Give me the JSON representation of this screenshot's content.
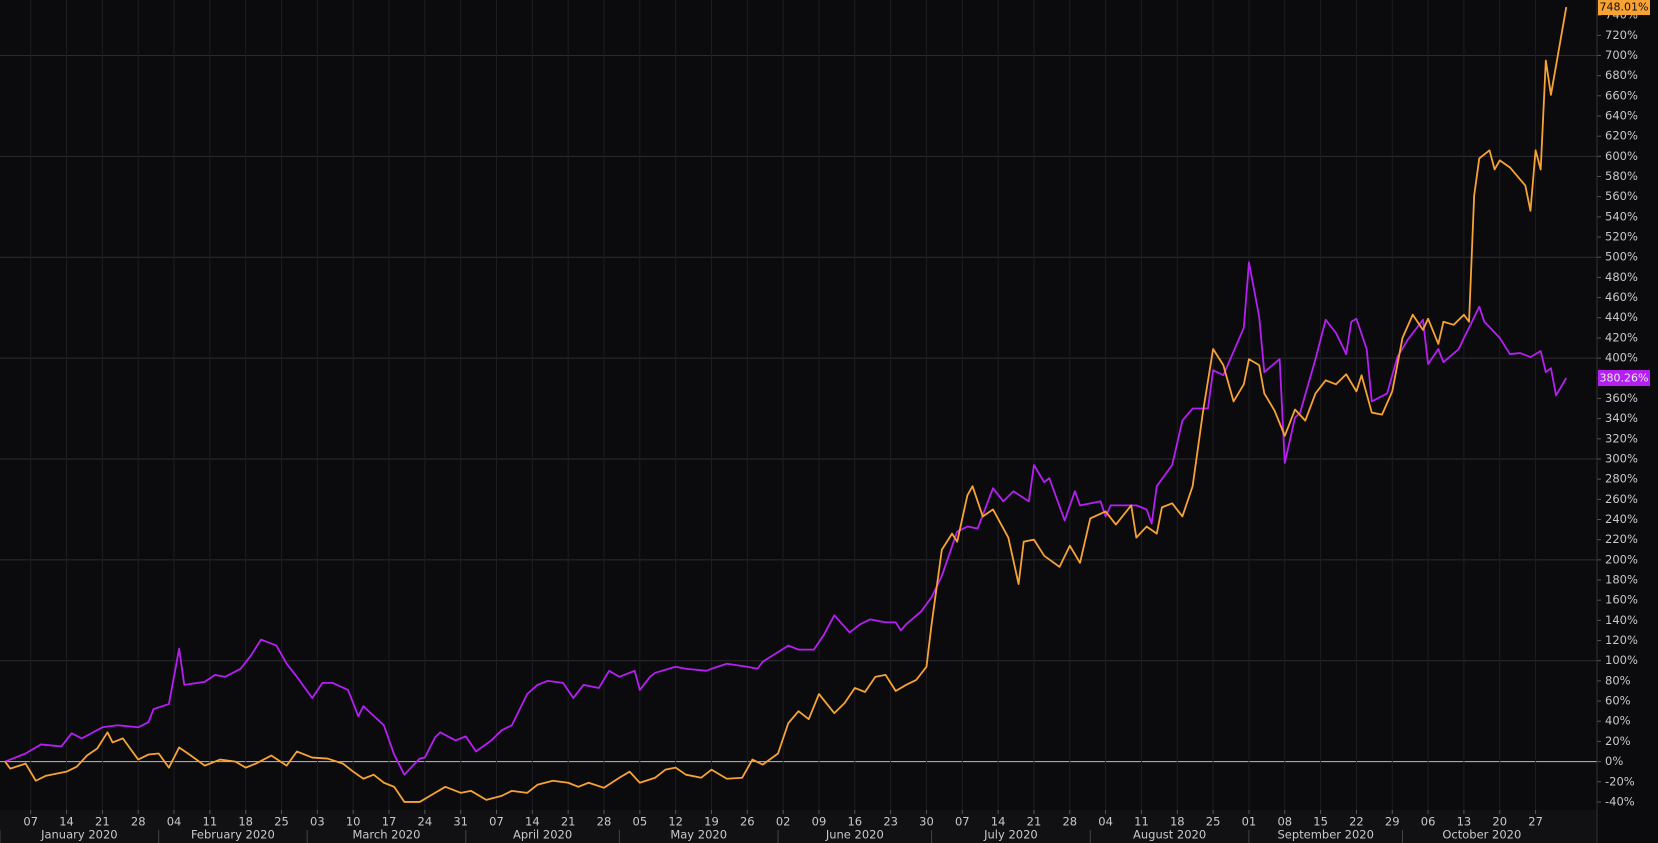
{
  "chart_data": {
    "type": "line",
    "xlim": [
      "2020-01-01",
      "2020-11-08"
    ],
    "ylim": [
      -48,
      755
    ],
    "grid": true,
    "xticks": [
      {
        "value": "2020-01-07",
        "label": "07"
      },
      {
        "value": "2020-01-14",
        "label": "14"
      },
      {
        "value": "2020-01-21",
        "label": "21"
      },
      {
        "value": "2020-01-28",
        "label": "28"
      },
      {
        "value": "2020-02-04",
        "label": "04"
      },
      {
        "value": "2020-02-11",
        "label": "11"
      },
      {
        "value": "2020-02-18",
        "label": "18"
      },
      {
        "value": "2020-02-25",
        "label": "25"
      },
      {
        "value": "2020-03-03",
        "label": "03"
      },
      {
        "value": "2020-03-10",
        "label": "10"
      },
      {
        "value": "2020-03-17",
        "label": "17"
      },
      {
        "value": "2020-03-24",
        "label": "24"
      },
      {
        "value": "2020-03-31",
        "label": "31"
      },
      {
        "value": "2020-04-07",
        "label": "07"
      },
      {
        "value": "2020-04-14",
        "label": "14"
      },
      {
        "value": "2020-04-21",
        "label": "21"
      },
      {
        "value": "2020-04-28",
        "label": "28"
      },
      {
        "value": "2020-05-05",
        "label": "05"
      },
      {
        "value": "2020-05-12",
        "label": "12"
      },
      {
        "value": "2020-05-19",
        "label": "19"
      },
      {
        "value": "2020-05-26",
        "label": "26"
      },
      {
        "value": "2020-06-02",
        "label": "02"
      },
      {
        "value": "2020-06-09",
        "label": "09"
      },
      {
        "value": "2020-06-16",
        "label": "16"
      },
      {
        "value": "2020-06-23",
        "label": "23"
      },
      {
        "value": "2020-06-30",
        "label": "30"
      },
      {
        "value": "2020-07-07",
        "label": "07"
      },
      {
        "value": "2020-07-14",
        "label": "14"
      },
      {
        "value": "2020-07-21",
        "label": "21"
      },
      {
        "value": "2020-07-28",
        "label": "28"
      },
      {
        "value": "2020-08-04",
        "label": "04"
      },
      {
        "value": "2020-08-11",
        "label": "11"
      },
      {
        "value": "2020-08-18",
        "label": "18"
      },
      {
        "value": "2020-08-25",
        "label": "25"
      },
      {
        "value": "2020-09-01",
        "label": "01"
      },
      {
        "value": "2020-09-08",
        "label": "08"
      },
      {
        "value": "2020-09-15",
        "label": "15"
      },
      {
        "value": "2020-09-22",
        "label": "22"
      },
      {
        "value": "2020-09-29",
        "label": "29"
      },
      {
        "value": "2020-10-06",
        "label": "06"
      },
      {
        "value": "2020-10-13",
        "label": "13"
      },
      {
        "value": "2020-10-20",
        "label": "20"
      },
      {
        "value": "2020-10-27",
        "label": "27"
      }
    ],
    "months": [
      {
        "value": "2020-01",
        "label": "January 2020"
      },
      {
        "value": "2020-02",
        "label": "February 2020"
      },
      {
        "value": "2020-03",
        "label": "March 2020"
      },
      {
        "value": "2020-04",
        "label": "April 2020"
      },
      {
        "value": "2020-05",
        "label": "May 2020"
      },
      {
        "value": "2020-06",
        "label": "June 2020"
      },
      {
        "value": "2020-07",
        "label": "July 2020"
      },
      {
        "value": "2020-08",
        "label": "August 2020"
      },
      {
        "value": "2020-09",
        "label": "September 2020"
      },
      {
        "value": "2020-10",
        "label": "October 2020"
      }
    ],
    "yticks": [
      {
        "value": -40,
        "label": "-40%"
      },
      {
        "value": -20,
        "label": "-20%"
      },
      {
        "value": 0,
        "label": "0%"
      },
      {
        "value": 20,
        "label": "20%"
      },
      {
        "value": 40,
        "label": "40%"
      },
      {
        "value": 60,
        "label": "60%"
      },
      {
        "value": 80,
        "label": "80%"
      },
      {
        "value": 100,
        "label": "100%"
      },
      {
        "value": 120,
        "label": "120%"
      },
      {
        "value": 140,
        "label": "140%"
      },
      {
        "value": 160,
        "label": "160%"
      },
      {
        "value": 180,
        "label": "180%"
      },
      {
        "value": 200,
        "label": "200%"
      },
      {
        "value": 220,
        "label": "220%"
      },
      {
        "value": 240,
        "label": "240%"
      },
      {
        "value": 260,
        "label": "260%"
      },
      {
        "value": 280,
        "label": "280%"
      },
      {
        "value": 300,
        "label": "300%"
      },
      {
        "value": 320,
        "label": "320%"
      },
      {
        "value": 340,
        "label": "340%"
      },
      {
        "value": 360,
        "label": "360%"
      },
      {
        "value": 380,
        "label": "380%"
      },
      {
        "value": 400,
        "label": "400%"
      },
      {
        "value": 420,
        "label": "420%"
      },
      {
        "value": 440,
        "label": "440%"
      },
      {
        "value": 460,
        "label": "460%"
      },
      {
        "value": 480,
        "label": "480%"
      },
      {
        "value": 500,
        "label": "500%"
      },
      {
        "value": 520,
        "label": "520%"
      },
      {
        "value": 540,
        "label": "540%"
      },
      {
        "value": 560,
        "label": "560%"
      },
      {
        "value": 580,
        "label": "580%"
      },
      {
        "value": 600,
        "label": "600%"
      },
      {
        "value": 620,
        "label": "620%"
      },
      {
        "value": 640,
        "label": "640%"
      },
      {
        "value": 660,
        "label": "660%"
      },
      {
        "value": 680,
        "label": "680%"
      },
      {
        "value": 700,
        "label": "700%"
      },
      {
        "value": 720,
        "label": "720%"
      },
      {
        "value": 740,
        "label": "740%"
      }
    ],
    "series": [
      {
        "color": "#b51ff2",
        "last_label": "380.26%",
        "x": [
          "2020-01-02",
          "2020-01-06",
          "2020-01-09",
          "2020-01-13",
          "2020-01-15",
          "2020-01-17",
          "2020-01-21",
          "2020-01-24",
          "2020-01-28",
          "2020-01-30",
          "2020-01-31",
          "2020-02-03",
          "2020-02-05",
          "2020-02-06",
          "2020-02-10",
          "2020-02-12",
          "2020-02-14",
          "2020-02-17",
          "2020-02-19",
          "2020-02-21",
          "2020-02-24",
          "2020-02-26",
          "2020-02-28",
          "2020-03-02",
          "2020-03-04",
          "2020-03-06",
          "2020-03-09",
          "2020-03-11",
          "2020-03-12",
          "2020-03-13",
          "2020-03-16",
          "2020-03-18",
          "2020-03-20",
          "2020-03-23",
          "2020-03-24",
          "2020-03-26",
          "2020-03-27",
          "2020-03-30",
          "2020-04-01",
          "2020-04-03",
          "2020-04-06",
          "2020-04-08",
          "2020-04-10",
          "2020-04-13",
          "2020-04-15",
          "2020-04-17",
          "2020-04-20",
          "2020-04-22",
          "2020-04-24",
          "2020-04-27",
          "2020-04-29",
          "2020-05-01",
          "2020-05-04",
          "2020-05-05",
          "2020-05-07",
          "2020-05-08",
          "2020-05-12",
          "2020-05-14",
          "2020-05-18",
          "2020-05-19",
          "2020-05-22",
          "2020-05-26",
          "2020-05-28",
          "2020-05-29",
          "2020-06-03",
          "2020-06-05",
          "2020-06-08",
          "2020-06-10",
          "2020-06-12",
          "2020-06-15",
          "2020-06-17",
          "2020-06-19",
          "2020-06-22",
          "2020-06-24",
          "2020-06-25",
          "2020-06-26",
          "2020-06-29",
          "2020-07-01",
          "2020-07-03",
          "2020-07-06",
          "2020-07-08",
          "2020-07-10",
          "2020-07-13",
          "2020-07-15",
          "2020-07-17",
          "2020-07-20",
          "2020-07-21",
          "2020-07-23",
          "2020-07-24",
          "2020-07-27",
          "2020-07-29",
          "2020-07-30",
          "2020-08-03",
          "2020-08-04",
          "2020-08-05",
          "2020-08-10",
          "2020-08-12",
          "2020-08-13",
          "2020-08-14",
          "2020-08-17",
          "2020-08-19",
          "2020-08-21",
          "2020-08-24",
          "2020-08-25",
          "2020-08-27",
          "2020-08-31",
          "2020-09-01",
          "2020-09-03",
          "2020-09-04",
          "2020-09-07",
          "2020-09-08",
          "2020-09-10",
          "2020-09-11",
          "2020-09-14",
          "2020-09-16",
          "2020-09-18",
          "2020-09-20",
          "2020-09-21",
          "2020-09-22",
          "2020-09-24",
          "2020-09-25",
          "2020-09-28",
          "2020-09-30",
          "2020-10-02",
          "2020-10-05",
          "2020-10-06",
          "2020-10-08",
          "2020-10-09",
          "2020-10-12",
          "2020-10-13",
          "2020-10-14",
          "2020-10-16",
          "2020-10-17",
          "2020-10-20",
          "2020-10-22",
          "2020-10-24",
          "2020-10-26",
          "2020-10-28",
          "2020-10-29",
          "2020-10-30",
          "2020-10-31",
          "2020-11-02"
        ],
        "values": [
          0,
          8,
          17,
          15,
          28,
          23,
          34,
          36,
          34,
          39,
          52,
          57,
          112,
          76,
          79,
          86,
          84,
          92,
          105,
          121,
          115,
          97,
          84,
          63,
          78,
          78,
          71,
          45,
          55,
          50,
          36,
          7,
          -13,
          3,
          4,
          24,
          29,
          21,
          25,
          10,
          21,
          31,
          36,
          67,
          76,
          80,
          78,
          63,
          76,
          73,
          90,
          84,
          90,
          71,
          84,
          88,
          94,
          92,
          90,
          92,
          97,
          94,
          92,
          99,
          115,
          111,
          111,
          126,
          145,
          128,
          136,
          141,
          138,
          138,
          130,
          136,
          149,
          163,
          184,
          228,
          233,
          231,
          271,
          258,
          268,
          258,
          294,
          277,
          281,
          239,
          268,
          254,
          258,
          243,
          254,
          254,
          250,
          236,
          273,
          294,
          338,
          350,
          350,
          388,
          383,
          430,
          495,
          441,
          386,
          399,
          296,
          341,
          346,
          399,
          438,
          425,
          404,
          436,
          439,
          409,
          357,
          365,
          401,
          418,
          438,
          394,
          409,
          396,
          409,
          420,
          430,
          451,
          436,
          420,
          404,
          405,
          401,
          407,
          386,
          390,
          363,
          380.26
        ]
      },
      {
        "color": "#f7a234",
        "last_label": "748.01%",
        "x": [
          "2020-01-02",
          "2020-01-03",
          "2020-01-06",
          "2020-01-08",
          "2020-01-10",
          "2020-01-14",
          "2020-01-16",
          "2020-01-18",
          "2020-01-20",
          "2020-01-22",
          "2020-01-23",
          "2020-01-25",
          "2020-01-28",
          "2020-01-30",
          "2020-02-01",
          "2020-02-03",
          "2020-02-05",
          "2020-02-07",
          "2020-02-10",
          "2020-02-13",
          "2020-02-16",
          "2020-02-18",
          "2020-02-20",
          "2020-02-23",
          "2020-02-26",
          "2020-02-28",
          "2020-03-02",
          "2020-03-05",
          "2020-03-08",
          "2020-03-10",
          "2020-03-12",
          "2020-03-14",
          "2020-03-16",
          "2020-03-18",
          "2020-03-20",
          "2020-03-23",
          "2020-03-25",
          "2020-03-28",
          "2020-03-31",
          "2020-04-02",
          "2020-04-05",
          "2020-04-08",
          "2020-04-10",
          "2020-04-13",
          "2020-04-15",
          "2020-04-18",
          "2020-04-21",
          "2020-04-23",
          "2020-04-25",
          "2020-04-28",
          "2020-05-01",
          "2020-05-03",
          "2020-05-05",
          "2020-05-08",
          "2020-05-10",
          "2020-05-12",
          "2020-05-14",
          "2020-05-17",
          "2020-05-19",
          "2020-05-22",
          "2020-05-25",
          "2020-05-27",
          "2020-05-29",
          "2020-06-01",
          "2020-06-03",
          "2020-06-05",
          "2020-06-07",
          "2020-06-09",
          "2020-06-12",
          "2020-06-14",
          "2020-06-16",
          "2020-06-18",
          "2020-06-20",
          "2020-06-22",
          "2020-06-24",
          "2020-06-26",
          "2020-06-28",
          "2020-06-30",
          "2020-07-01",
          "2020-07-03",
          "2020-07-05",
          "2020-07-06",
          "2020-07-08",
          "2020-07-09",
          "2020-07-11",
          "2020-07-13",
          "2020-07-16",
          "2020-07-18",
          "2020-07-19",
          "2020-07-21",
          "2020-07-23",
          "2020-07-26",
          "2020-07-28",
          "2020-07-30",
          "2020-08-01",
          "2020-08-04",
          "2020-08-06",
          "2020-08-09",
          "2020-08-10",
          "2020-08-12",
          "2020-08-14",
          "2020-08-15",
          "2020-08-17",
          "2020-08-19",
          "2020-08-21",
          "2020-08-23",
          "2020-08-25",
          "2020-08-27",
          "2020-08-29",
          "2020-08-31",
          "2020-09-01",
          "2020-09-03",
          "2020-09-04",
          "2020-09-06",
          "2020-09-08",
          "2020-09-10",
          "2020-09-12",
          "2020-09-14",
          "2020-09-16",
          "2020-09-18",
          "2020-09-20",
          "2020-09-22",
          "2020-09-23",
          "2020-09-25",
          "2020-09-27",
          "2020-09-29",
          "2020-10-01",
          "2020-10-03",
          "2020-10-05",
          "2020-10-06",
          "2020-10-08",
          "2020-10-09",
          "2020-10-11",
          "2020-10-13",
          "2020-10-14",
          "2020-10-15",
          "2020-10-16",
          "2020-10-18",
          "2020-10-19",
          "2020-10-20",
          "2020-10-22",
          "2020-10-24",
          "2020-10-25",
          "2020-10-26",
          "2020-10-27",
          "2020-10-28",
          "2020-10-29",
          "2020-10-30",
          "2020-11-02"
        ],
        "values": [
          0,
          -7,
          -2,
          -19,
          -14,
          -10,
          -5,
          6,
          13,
          29,
          19,
          23,
          2,
          7,
          8,
          -6,
          14,
          7,
          -4,
          2,
          0,
          -6,
          -2,
          6,
          -4,
          10,
          4,
          3,
          -2,
          -10,
          -17,
          -13,
          -21,
          -25,
          -40,
          -40,
          -34,
          -25,
          -31,
          -29,
          -38,
          -34,
          -29,
          -31,
          -23,
          -19,
          -21,
          -25,
          -21,
          -26,
          -16,
          -10,
          -21,
          -16,
          -8,
          -6,
          -13,
          -16,
          -8,
          -17,
          -16,
          2,
          -3,
          8,
          38,
          50,
          42,
          67,
          48,
          58,
          73,
          69,
          84,
          86,
          70,
          76,
          81,
          94,
          136,
          210,
          226,
          218,
          264,
          273,
          243,
          250,
          222,
          176,
          218,
          220,
          204,
          193,
          214,
          197,
          241,
          248,
          235,
          254,
          222,
          233,
          226,
          252,
          256,
          243,
          273,
          346,
          409,
          393,
          357,
          374,
          399,
          393,
          365,
          348,
          323,
          349,
          338,
          365,
          378,
          374,
          384,
          367,
          383,
          346,
          344,
          367,
          420,
          443,
          428,
          439,
          414,
          436,
          433,
          443,
          436,
          561,
          598,
          606,
          587,
          596,
          589,
          577,
          571,
          546,
          606,
          587,
          695,
          661,
          748.01
        ]
      }
    ]
  }
}
